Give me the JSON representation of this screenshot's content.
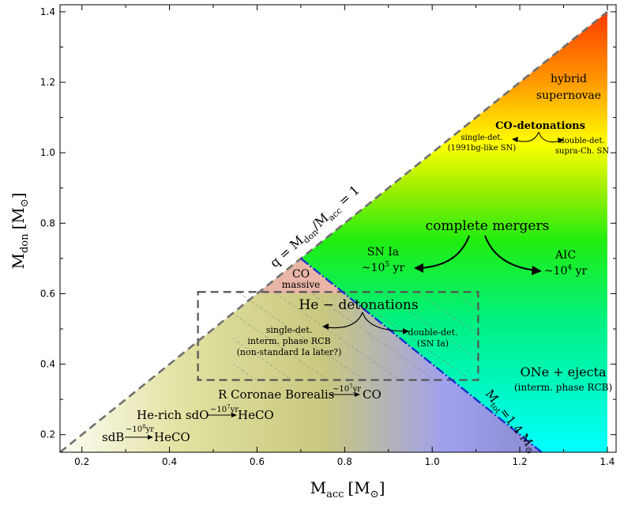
{
  "chart_data": {
    "type": "region-diagram",
    "xlabel": "M",
    "xlabel_sub": "acc",
    "xlabel_unit": "[M",
    "ylabel": "M",
    "ylabel_sub": "don",
    "ylabel_unit": "[M",
    "xlim": [
      0.15,
      1.42
    ],
    "ylim": [
      0.15,
      1.42
    ],
    "x_ticks": [
      0.2,
      0.4,
      0.6,
      0.8,
      1.0,
      1.2,
      1.4
    ],
    "y_ticks": [
      0.2,
      0.4,
      0.6,
      0.8,
      1.0,
      1.2,
      1.4
    ],
    "x_tick_labels": [
      "0.2",
      "0.4",
      "0.6",
      "0.8",
      "1.0",
      "1.2",
      "1.4"
    ],
    "y_tick_labels": [
      "0.2",
      "0.4",
      "0.6",
      "0.8",
      "1.0",
      "1.2",
      "1.4"
    ],
    "lines": {
      "q1_label": "q = M",
      "q1_label_sub1": "don",
      "q1_label_mid": "/M",
      "q1_label_sub2": "acc",
      "q1_label_end": " = 1",
      "q1_from": [
        0.15,
        0.15
      ],
      "q1_to": [
        1.4,
        1.4
      ],
      "mtot_label": "M",
      "mtot_label_sub": "tot",
      "mtot_label_end": "=1.4 M",
      "mtot_from": [
        0.7,
        0.7
      ],
      "mtot_to": [
        1.25,
        0.15
      ]
    },
    "regions": {
      "co_massive": {
        "line1": "CO",
        "line2": "massive"
      },
      "he_box": {
        "x": [
          0.465,
          1.105
        ],
        "y": [
          0.355,
          0.605
        ],
        "title": "He − detonations"
      }
    },
    "annotations": {
      "hybrid": [
        "hybrid",
        "supernovae"
      ],
      "co_det_title": "CO-detonations",
      "co_single": [
        "single-det.",
        "(1991bg-like SN)"
      ],
      "co_double": [
        "double-det.",
        "supra-Ch. SN"
      ],
      "complete_mergers": "complete mergers",
      "sn_ia": [
        "SN Ia",
        "~10",
        "5",
        " yr"
      ],
      "aic": [
        "AIC",
        "~10",
        "4",
        " yr"
      ],
      "he_single": [
        "single-det.",
        "interm. phase RCB",
        "(non-standard Ia later?)"
      ],
      "he_double": [
        "double-det.",
        "(SN Ia)"
      ],
      "one_ejecta": [
        "ONe + ejecta",
        "(interm. phase RCB)"
      ],
      "rcb": {
        "from": "R Coronae Borealis",
        "time": "~10",
        "exp": "7",
        "unit": "yr",
        "to": "CO"
      },
      "hesdo": {
        "from": "He-rich sdO",
        "time": "~10",
        "exp": "7",
        "unit": "yr",
        "to": "HeCO"
      },
      "sdb": {
        "from": "sdB",
        "time": "~10",
        "exp": "8",
        "unit": "yr",
        "to": "HeCO"
      }
    },
    "colors": {
      "q1_line": "#707070",
      "mtot_line": "#1a2fd0",
      "co_massive": "#e8b5a6",
      "he_box": "#555555"
    }
  }
}
